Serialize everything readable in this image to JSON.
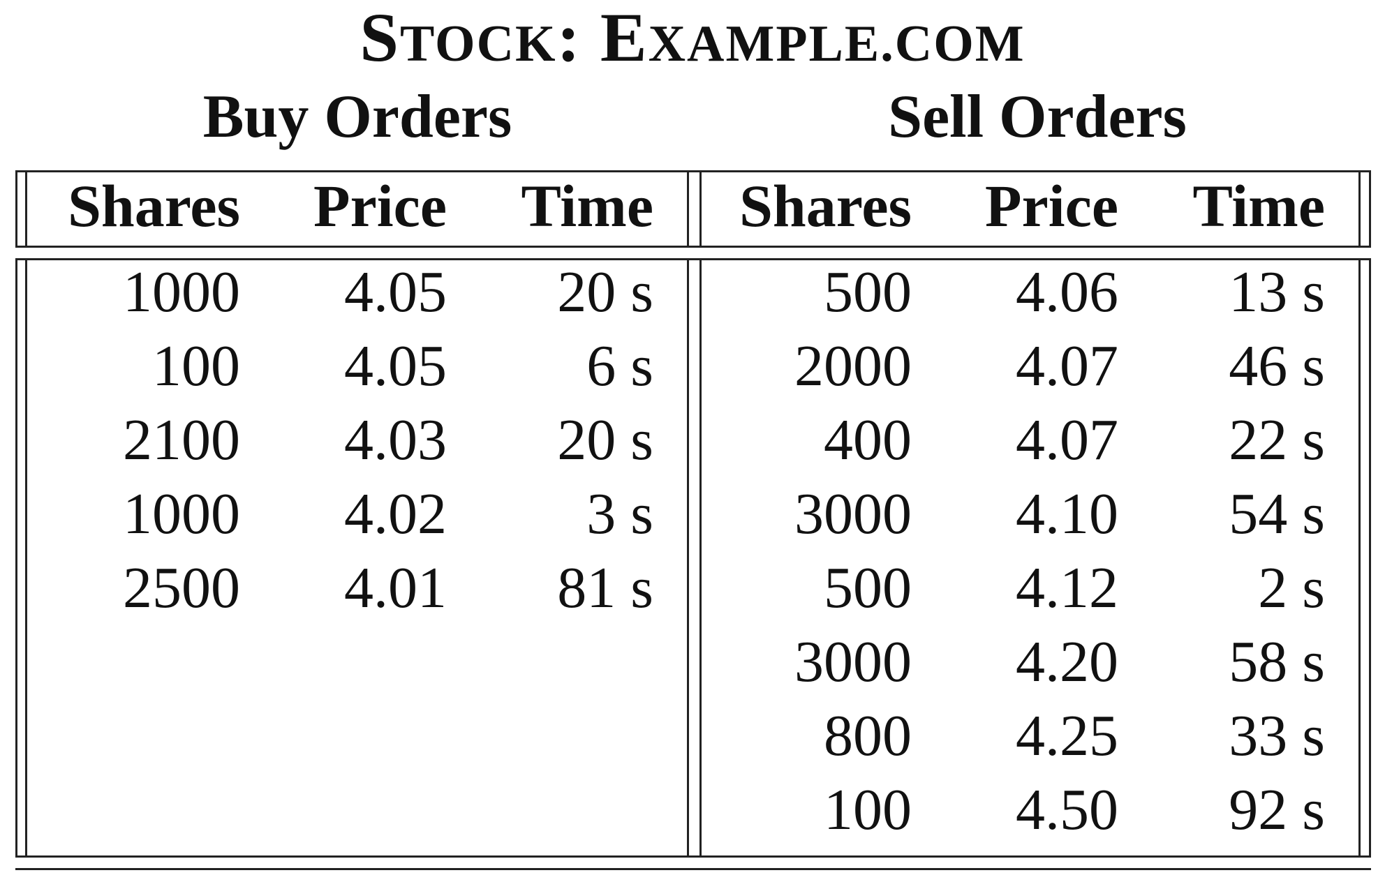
{
  "title": {
    "part1_first": "S",
    "part1_rest": "TOCK",
    "sep": ": ",
    "part2_first": "E",
    "part2_rest": "XAMPLE.COM"
  },
  "buy": {
    "title": "Buy Orders",
    "headers": [
      "Shares",
      "Price",
      "Time"
    ],
    "rows": [
      [
        "1000",
        "4.05",
        "20 s"
      ],
      [
        "100",
        "4.05",
        "6 s"
      ],
      [
        "2100",
        "4.03",
        "20 s"
      ],
      [
        "1000",
        "4.02",
        "3 s"
      ],
      [
        "2500",
        "4.01",
        "81 s"
      ]
    ]
  },
  "sell": {
    "title": "Sell Orders",
    "headers": [
      "Shares",
      "Price",
      "Time"
    ],
    "rows": [
      [
        "500",
        "4.06",
        "13 s"
      ],
      [
        "2000",
        "4.07",
        "46 s"
      ],
      [
        "400",
        "4.07",
        "22 s"
      ],
      [
        "3000",
        "4.10",
        "54 s"
      ],
      [
        "500",
        "4.12",
        "2 s"
      ],
      [
        "3000",
        "4.20",
        "58 s"
      ],
      [
        "800",
        "4.25",
        "33 s"
      ],
      [
        "100",
        "4.50",
        "92 s"
      ]
    ]
  }
}
